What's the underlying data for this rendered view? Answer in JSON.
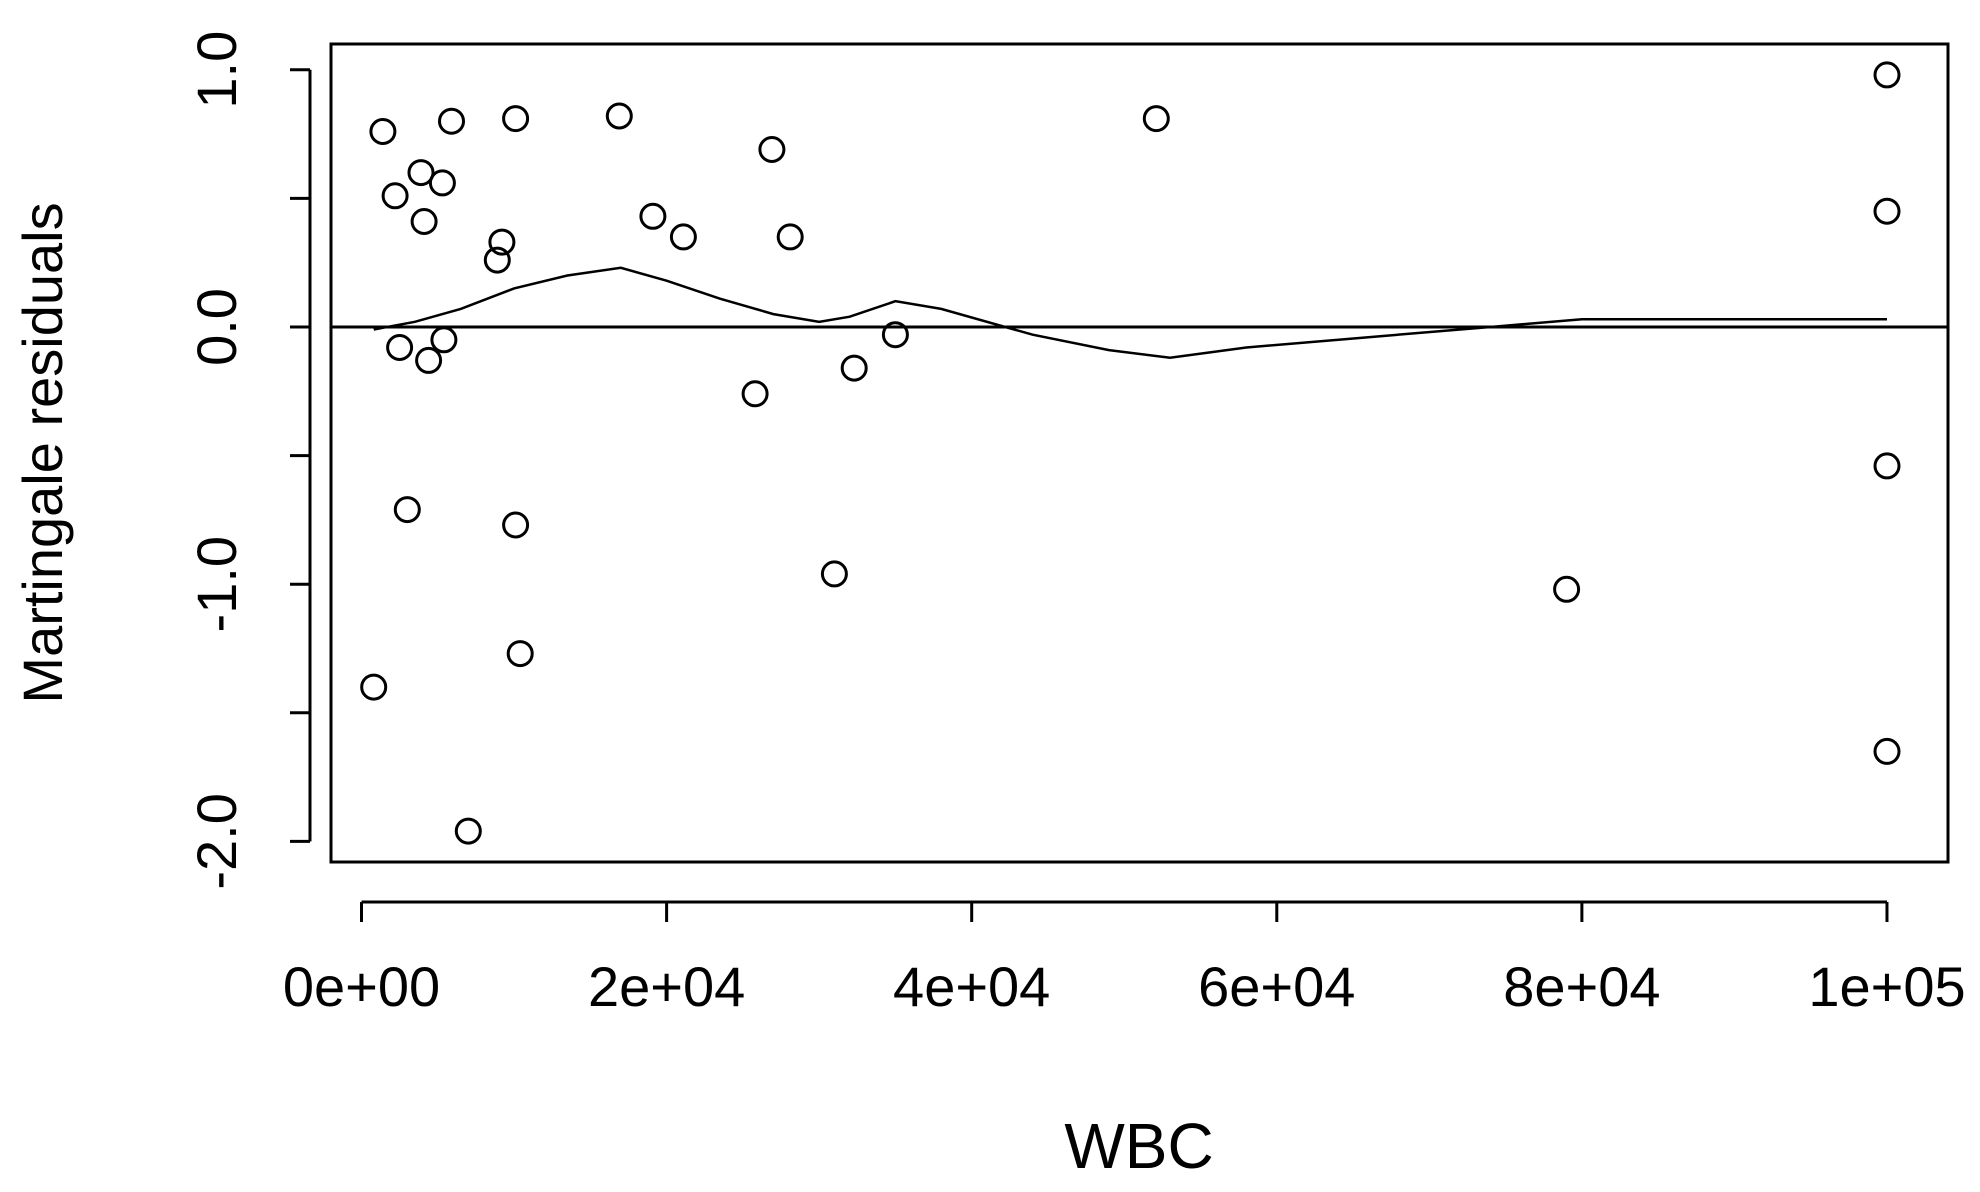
{
  "chart_data": {
    "type": "scatter",
    "title": "",
    "xlabel": "WBC",
    "ylabel": "Martingale residuals",
    "xlim": [
      -2000,
      104000
    ],
    "ylim": [
      -2.08,
      1.1
    ],
    "x_ticks": [
      0,
      20000,
      40000,
      60000,
      80000,
      100000
    ],
    "x_tick_labels": [
      "0e+00",
      "2e+04",
      "4e+04",
      "6e+04",
      "8e+04",
      "1e+05"
    ],
    "y_ticks": [
      -2.0,
      -1.5,
      -1.0,
      -0.5,
      0.0,
      0.5,
      1.0
    ],
    "y_tick_labels": [
      "-2.0",
      "",
      "-1.0",
      "",
      "0.0",
      "",
      "1.0"
    ],
    "grid": false,
    "legend": "none",
    "colors": {
      "axis": "#000000",
      "points": "#000000",
      "background": "#ffffff"
    },
    "reference_line": {
      "y": 0.0
    },
    "points": [
      {
        "x": 1400,
        "y": 0.76
      },
      {
        "x": 2200,
        "y": 0.51
      },
      {
        "x": 2500,
        "y": -0.08
      },
      {
        "x": 3000,
        "y": -0.71
      },
      {
        "x": 3900,
        "y": 0.6
      },
      {
        "x": 4100,
        "y": 0.41
      },
      {
        "x": 4400,
        "y": -0.13
      },
      {
        "x": 5300,
        "y": 0.56
      },
      {
        "x": 5400,
        "y": -0.05
      },
      {
        "x": 5900,
        "y": 0.8
      },
      {
        "x": 7000,
        "y": -1.96
      },
      {
        "x": 8900,
        "y": 0.26
      },
      {
        "x": 9200,
        "y": 0.33
      },
      {
        "x": 10100,
        "y": 0.81
      },
      {
        "x": 10100,
        "y": -0.77
      },
      {
        "x": 10400,
        "y": -1.27
      },
      {
        "x": 800,
        "y": -1.4
      },
      {
        "x": 16900,
        "y": 0.82
      },
      {
        "x": 19100,
        "y": 0.43
      },
      {
        "x": 21100,
        "y": 0.35
      },
      {
        "x": 25800,
        "y": -0.26
      },
      {
        "x": 26900,
        "y": 0.69
      },
      {
        "x": 28100,
        "y": 0.35
      },
      {
        "x": 31000,
        "y": -0.96
      },
      {
        "x": 32300,
        "y": -0.16
      },
      {
        "x": 35000,
        "y": -0.03
      },
      {
        "x": 52100,
        "y": 0.81
      },
      {
        "x": 79000,
        "y": -1.02
      },
      {
        "x": 100000,
        "y": 0.98
      },
      {
        "x": 100000,
        "y": 0.45
      },
      {
        "x": 100000,
        "y": -0.54
      },
      {
        "x": 100000,
        "y": -1.65
      }
    ],
    "smooth_line": [
      {
        "x": 800,
        "y": -0.01
      },
      {
        "x": 3500,
        "y": 0.02
      },
      {
        "x": 6500,
        "y": 0.07
      },
      {
        "x": 10000,
        "y": 0.15
      },
      {
        "x": 13500,
        "y": 0.2
      },
      {
        "x": 17000,
        "y": 0.23
      },
      {
        "x": 20000,
        "y": 0.18
      },
      {
        "x": 23500,
        "y": 0.11
      },
      {
        "x": 27000,
        "y": 0.05
      },
      {
        "x": 30000,
        "y": 0.02
      },
      {
        "x": 32000,
        "y": 0.04
      },
      {
        "x": 35000,
        "y": 0.1
      },
      {
        "x": 38000,
        "y": 0.07
      },
      {
        "x": 44000,
        "y": -0.03
      },
      {
        "x": 49000,
        "y": -0.09
      },
      {
        "x": 53000,
        "y": -0.12
      },
      {
        "x": 58000,
        "y": -0.08
      },
      {
        "x": 66000,
        "y": -0.04
      },
      {
        "x": 74000,
        "y": 0.0
      },
      {
        "x": 80000,
        "y": 0.03
      },
      {
        "x": 90000,
        "y": 0.03
      },
      {
        "x": 100000,
        "y": 0.03
      }
    ]
  }
}
